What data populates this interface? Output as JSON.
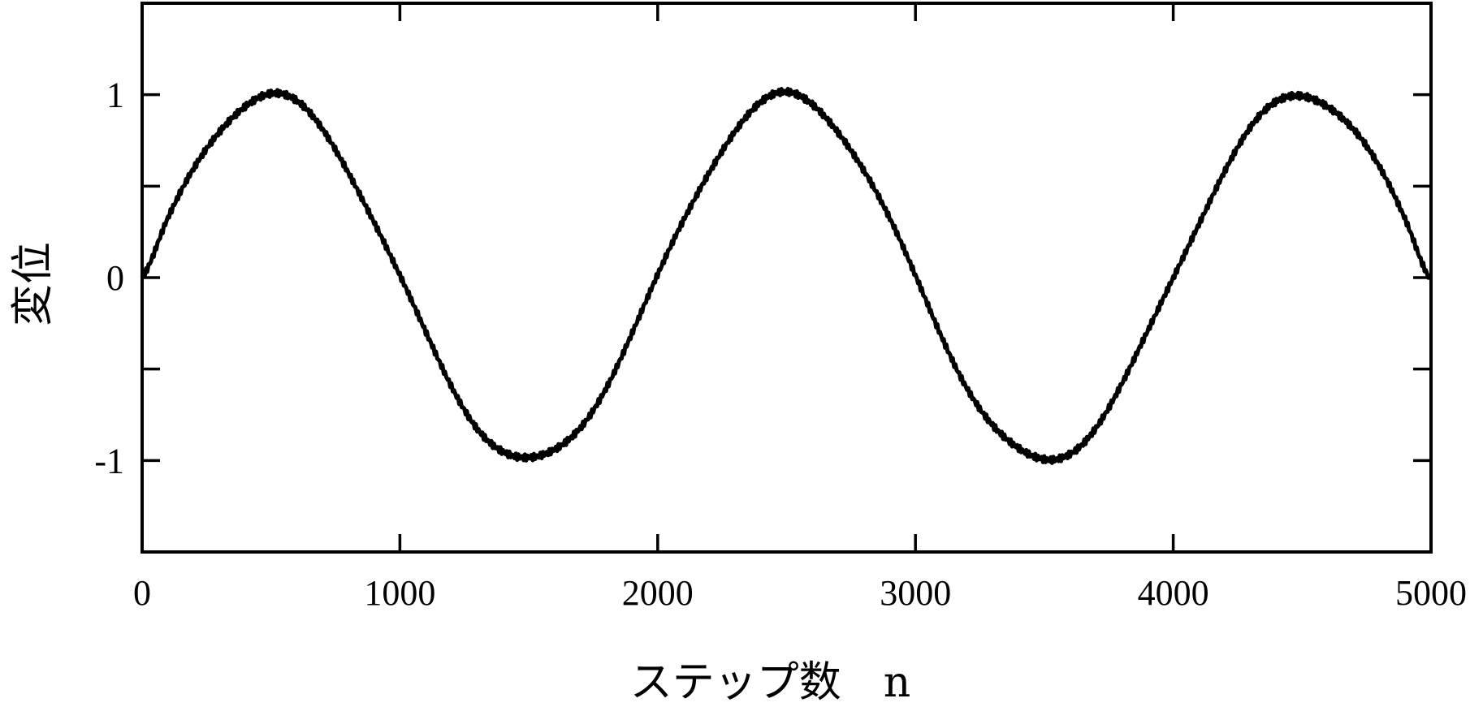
{
  "chart_data": {
    "type": "line",
    "title": "",
    "xlabel": "ステップ数　n",
    "ylabel": "変位",
    "xlim": [
      0,
      5000
    ],
    "ylim": [
      -1.5,
      1.5
    ],
    "x_ticks": [
      0,
      1000,
      2000,
      3000,
      4000,
      5000
    ],
    "y_ticks": [
      -1,
      0,
      1
    ],
    "y_tick_labels": [
      "-1",
      "0",
      "1"
    ],
    "y_minor_ticks": [
      -0.5,
      0.5
    ],
    "grid": false,
    "legend": "none",
    "line_color": "#000000",
    "series": [
      {
        "x": [
          0,
          100,
          200,
          300,
          400,
          500,
          600,
          700,
          800,
          900,
          1000,
          1100,
          1200,
          1300,
          1400,
          1500,
          1600,
          1700,
          1800,
          1900,
          2000,
          2100,
          2200,
          2300,
          2400,
          2500,
          2600,
          2700,
          2800,
          2900,
          3000,
          3100,
          3200,
          3300,
          3400,
          3500,
          3600,
          3700,
          3800,
          3900,
          4000,
          4100,
          4200,
          4300,
          4400,
          4500,
          4600,
          4700,
          4800,
          4900,
          5000
        ],
        "values": [
          0.0,
          0.31,
          0.59,
          0.81,
          0.95,
          1.0,
          0.95,
          0.81,
          0.59,
          0.31,
          0.0,
          -0.31,
          -0.59,
          -0.81,
          -0.95,
          -1.0,
          -0.95,
          -0.81,
          -0.59,
          -0.31,
          0.0,
          0.31,
          0.59,
          0.81,
          0.95,
          1.0,
          0.95,
          0.81,
          0.59,
          0.31,
          0.0,
          -0.31,
          -0.59,
          -0.81,
          -0.95,
          -1.0,
          -0.95,
          -0.81,
          -0.59,
          -0.31,
          0.0,
          0.31,
          0.59,
          0.81,
          0.95,
          1.0,
          0.95,
          0.81,
          0.59,
          0.31,
          0.0
        ]
      }
    ]
  }
}
